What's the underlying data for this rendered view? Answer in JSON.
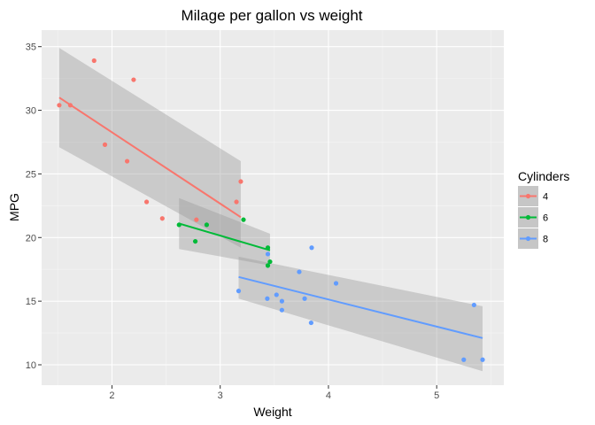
{
  "chart_data": {
    "type": "scatter",
    "title": "Milage per gallon vs weight",
    "xlabel": "Weight",
    "ylabel": "MPG",
    "xlim": [
      1.35,
      5.62
    ],
    "ylim": [
      8.4,
      36.3
    ],
    "x_ticks": [
      2,
      3,
      4,
      5
    ],
    "y_ticks": [
      10,
      15,
      20,
      25,
      30,
      35
    ],
    "x_minor": [
      1.5,
      2.5,
      3.5,
      4.5,
      5.5
    ],
    "y_minor": [
      12.5,
      17.5,
      22.5,
      27.5,
      32.5
    ],
    "grid": true,
    "legend": {
      "title": "Cylinders",
      "position": "right"
    },
    "series": [
      {
        "name": "4",
        "color": "#F8766D",
        "points": [
          [
            1.513,
            30.4
          ],
          [
            1.615,
            30.4
          ],
          [
            1.835,
            33.9
          ],
          [
            1.935,
            27.3
          ],
          [
            2.14,
            26.0
          ],
          [
            2.2,
            32.4
          ],
          [
            2.32,
            22.8
          ],
          [
            2.465,
            21.5
          ],
          [
            2.78,
            21.4
          ],
          [
            3.15,
            22.8
          ],
          [
            3.19,
            24.4
          ]
        ],
        "fit": {
          "x": [
            1.513,
            3.19
          ],
          "y": [
            31.0,
            21.6
          ]
        },
        "band": {
          "x": [
            1.513,
            3.19
          ],
          "lower": [
            27.1,
            19.2
          ],
          "upper": [
            34.9,
            26.0
          ]
        }
      },
      {
        "name": "6",
        "color": "#00BA38",
        "points": [
          [
            2.62,
            21.0
          ],
          [
            2.77,
            19.7
          ],
          [
            2.875,
            21.0
          ],
          [
            3.215,
            21.4
          ],
          [
            3.44,
            17.8
          ],
          [
            3.44,
            19.2
          ],
          [
            3.46,
            18.1
          ]
        ],
        "fit": {
          "x": [
            2.62,
            3.46
          ],
          "y": [
            21.1,
            19.0
          ]
        },
        "band": {
          "x": [
            2.62,
            3.46
          ],
          "lower": [
            19.1,
            17.8
          ],
          "upper": [
            23.1,
            20.3
          ]
        }
      },
      {
        "name": "8",
        "color": "#619CFF",
        "points": [
          [
            3.17,
            15.8
          ],
          [
            3.435,
            15.2
          ],
          [
            3.44,
            18.7
          ],
          [
            3.52,
            15.5
          ],
          [
            3.57,
            15.0
          ],
          [
            3.57,
            14.3
          ],
          [
            3.73,
            17.3
          ],
          [
            3.78,
            15.2
          ],
          [
            3.84,
            13.3
          ],
          [
            3.845,
            19.2
          ],
          [
            4.07,
            16.4
          ],
          [
            5.25,
            10.4
          ],
          [
            5.345,
            14.7
          ],
          [
            5.424,
            10.4
          ]
        ],
        "fit": {
          "x": [
            3.17,
            5.424
          ],
          "y": [
            16.9,
            12.1
          ]
        },
        "band": {
          "x": [
            3.17,
            5.424
          ],
          "lower": [
            15.2,
            9.5
          ],
          "upper": [
            18.5,
            14.6
          ]
        }
      }
    ]
  }
}
